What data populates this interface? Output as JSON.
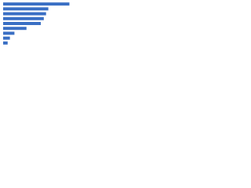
{
  "chart_data": {
    "type": "bar",
    "orientation": "horizontal",
    "categories": [
      null,
      null,
      null,
      null,
      null,
      null,
      null,
      null,
      null
    ],
    "values": [
      88,
      60,
      57,
      54,
      50,
      31,
      15,
      9,
      6
    ],
    "color": "#3a6fc4",
    "xlim": [
      0,
      100
    ]
  }
}
